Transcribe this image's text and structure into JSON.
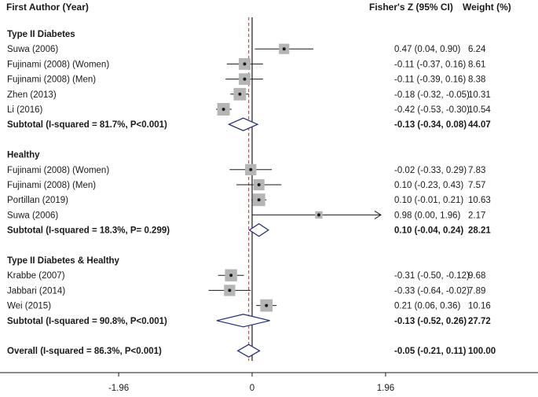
{
  "chart_data": {
    "type": "forest",
    "headers": {
      "study": "First Author (Year)",
      "effect": "Fisher's Z (95% CI)",
      "weight": "Weight (%)"
    },
    "x_axis": {
      "ticks": [
        {
          "value": -1.96,
          "label": "-1.96"
        },
        {
          "value": 0,
          "label": "0"
        },
        {
          "value": 1.96,
          "label": "1.96"
        }
      ]
    },
    "overall_line_value": -0.05,
    "rows": [
      {
        "kind": "group",
        "label": "Type II Diabetes"
      },
      {
        "kind": "study",
        "label": "Suwa (2006)",
        "es": 0.47,
        "lo": 0.04,
        "hi": 0.9,
        "ci_text": "0.47 (0.04, 0.90)",
        "weight": 6.24,
        "weight_text": "6.24"
      },
      {
        "kind": "study",
        "label": "Fujinami (2008) (Women)",
        "es": -0.11,
        "lo": -0.37,
        "hi": 0.16,
        "ci_text": "-0.11 (-0.37, 0.16)",
        "weight": 8.61,
        "weight_text": "8.61"
      },
      {
        "kind": "study",
        "label": "Fujinami (2008) (Men)",
        "es": -0.11,
        "lo": -0.39,
        "hi": 0.16,
        "ci_text": "-0.11 (-0.39, 0.16)",
        "weight": 8.38,
        "weight_text": "8.38"
      },
      {
        "kind": "study",
        "label": "Zhen (2013)",
        "es": -0.18,
        "lo": -0.32,
        "hi": -0.05,
        "ci_text": "-0.18 (-0.32, -0.05)",
        "weight": 10.31,
        "weight_text": "10.31"
      },
      {
        "kind": "study",
        "label": "Li (2016)",
        "es": -0.42,
        "lo": -0.53,
        "hi": -0.3,
        "ci_text": "-0.42 (-0.53, -0.30)",
        "weight": 10.54,
        "weight_text": "10.54"
      },
      {
        "kind": "subtotal",
        "label": "Subtotal  (I-squared = 81.7%, P<0.001)",
        "es": -0.13,
        "lo": -0.34,
        "hi": 0.08,
        "ci_text": "-0.13 (-0.34, 0.08)",
        "weight_text": "44.07"
      },
      {
        "kind": "gap"
      },
      {
        "kind": "group",
        "label": "Healthy"
      },
      {
        "kind": "study",
        "label": "Fujinami (2008) (Women)",
        "es": -0.02,
        "lo": -0.33,
        "hi": 0.29,
        "ci_text": "-0.02 (-0.33, 0.29)",
        "weight": 7.83,
        "weight_text": "7.83"
      },
      {
        "kind": "study",
        "label": "Fujinami (2008) (Men)",
        "es": 0.1,
        "lo": -0.23,
        "hi": 0.43,
        "ci_text": "0.10 (-0.23, 0.43)",
        "weight": 7.57,
        "weight_text": "7.57"
      },
      {
        "kind": "study",
        "label": "Portillan (2019)",
        "es": 0.1,
        "lo": -0.01,
        "hi": 0.21,
        "ci_text": "0.10 (-0.01, 0.21)",
        "weight": 10.63,
        "weight_text": "10.63"
      },
      {
        "kind": "study",
        "label": "Suwa (2006)",
        "es": 0.98,
        "lo": 0.0,
        "hi": 1.96,
        "ci_text": "0.98 (0.00, 1.96)",
        "weight": 2.17,
        "weight_text": "2.17",
        "arrow_right": true
      },
      {
        "kind": "subtotal",
        "label": "Subtotal  (I-squared = 18.3%, P= 0.299)",
        "es": 0.1,
        "lo": -0.04,
        "hi": 0.24,
        "ci_text": "0.10 (-0.04, 0.24)",
        "weight_text": "28.21"
      },
      {
        "kind": "gap"
      },
      {
        "kind": "group",
        "label": "Type II Diabetes & Healthy"
      },
      {
        "kind": "study",
        "label": "Krabbe (2007)",
        "es": -0.31,
        "lo": -0.5,
        "hi": -0.12,
        "ci_text": "-0.31 (-0.50, -0.12)",
        "weight": 9.68,
        "weight_text": "9.68"
      },
      {
        "kind": "study",
        "label": "Jabbari (2014)",
        "es": -0.33,
        "lo": -0.64,
        "hi": -0.02,
        "ci_text": "-0.33 (-0.64, -0.02)",
        "weight": 7.89,
        "weight_text": "7.89"
      },
      {
        "kind": "study",
        "label": "Wei (2015)",
        "es": 0.21,
        "lo": 0.06,
        "hi": 0.36,
        "ci_text": "0.21 (0.06, 0.36)",
        "weight": 10.16,
        "weight_text": "10.16"
      },
      {
        "kind": "subtotal",
        "label": "Subtotal  (I-squared = 90.8%, P<0.001)",
        "es": -0.13,
        "lo": -0.52,
        "hi": 0.26,
        "ci_text": "-0.13 (-0.52, 0.26)",
        "weight_text": "27.72"
      },
      {
        "kind": "gap"
      },
      {
        "kind": "overall",
        "label": "Overall  (I-squared = 86.3%, P<0.001)",
        "es": -0.05,
        "lo": -0.21,
        "hi": 0.11,
        "ci_text": "-0.05 (-0.21, 0.11)",
        "weight_text": "100.00"
      }
    ],
    "colors": {
      "text": "#1a1a1a",
      "weight_box": "#b5b5b5",
      "diamond": "#1f2a7a",
      "null_line": "#1a1a1a",
      "overall_line": "#b8323c",
      "axis": "#1a1a1a"
    }
  }
}
